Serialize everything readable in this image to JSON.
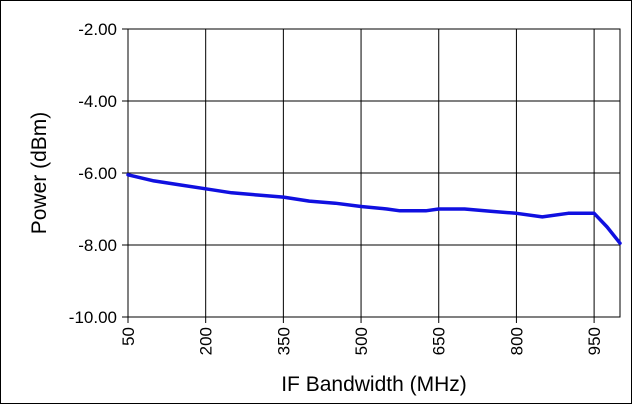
{
  "chart_data": {
    "type": "line",
    "title": "",
    "xlabel": "IF Bandwidth (MHz)",
    "ylabel": "Power (dBm)",
    "xlim": [
      50,
      1000
    ],
    "ylim": [
      -10,
      -2
    ],
    "x_ticks": [
      50,
      200,
      350,
      500,
      650,
      800,
      950
    ],
    "x_tick_labels": [
      "50",
      "200",
      "350",
      "500",
      "650",
      "800",
      "950"
    ],
    "y_ticks": [
      -2,
      -4,
      -6,
      -8,
      -10
    ],
    "y_tick_labels": [
      "-2.00",
      "-4.00",
      "-6.00",
      "-8.00",
      "-10.00"
    ],
    "grid": true,
    "series": [
      {
        "color": "#1010e0",
        "x": [
          50,
          100,
          150,
          200,
          250,
          300,
          350,
          400,
          450,
          500,
          550,
          575,
          625,
          650,
          700,
          750,
          800,
          850,
          900,
          950,
          975,
          1000
        ],
        "y": [
          -6.05,
          -6.22,
          -6.33,
          -6.44,
          -6.55,
          -6.61,
          -6.67,
          -6.78,
          -6.84,
          -6.93,
          -7.0,
          -7.05,
          -7.05,
          -7.0,
          -7.0,
          -7.06,
          -7.12,
          -7.22,
          -7.12,
          -7.12,
          -7.5,
          -7.95
        ]
      }
    ]
  }
}
